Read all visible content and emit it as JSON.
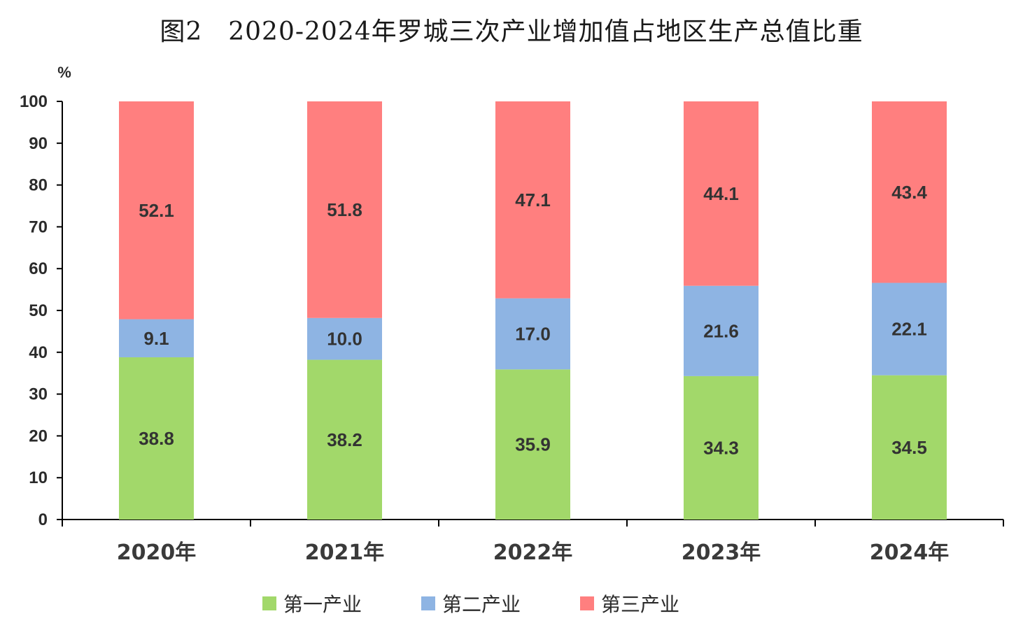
{
  "chart_data": {
    "type": "bar",
    "stacked": true,
    "title": "图2　2020-2024年罗城三次产业增加值占地区生产总值比重",
    "ylabel": "%",
    "ylim": [
      0,
      100
    ],
    "yticks": [
      0,
      10,
      20,
      30,
      40,
      50,
      60,
      70,
      80,
      90,
      100
    ],
    "categories": [
      "2020年",
      "2021年",
      "2022年",
      "2023年",
      "2024年"
    ],
    "series": [
      {
        "name": "第一产业",
        "color": "#a2d86a",
        "values": [
          38.8,
          38.2,
          35.9,
          34.3,
          34.5
        ]
      },
      {
        "name": "第二产业",
        "color": "#8eb4e3",
        "values": [
          9.1,
          10.0,
          17.0,
          21.6,
          22.1
        ]
      },
      {
        "name": "第三产业",
        "color": "#ff7f7f",
        "values": [
          52.1,
          51.8,
          47.1,
          44.1,
          43.4
        ]
      }
    ],
    "legend_position": "bottom",
    "grid": false
  }
}
